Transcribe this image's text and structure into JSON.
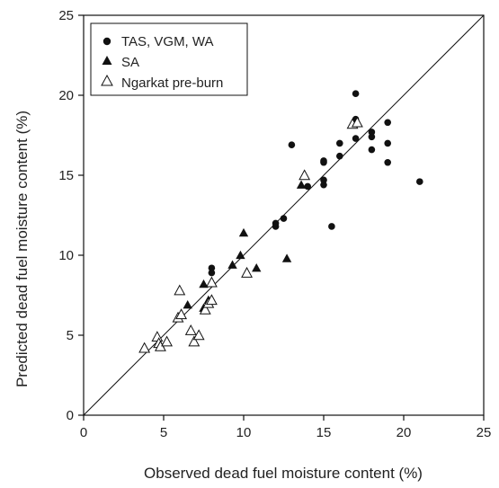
{
  "chart_data": {
    "type": "scatter",
    "title": "",
    "xlabel": "Observed dead fuel moisture content (%)",
    "ylabel": "Predicted dead fuel moisture content (%)",
    "xlim": [
      0,
      25
    ],
    "ylim": [
      0,
      25
    ],
    "x_ticks": [
      0,
      5,
      10,
      15,
      20,
      25
    ],
    "y_ticks": [
      0,
      5,
      10,
      15,
      20,
      25
    ],
    "grid": false,
    "legend_position": "top-left",
    "reference_line": "1:1",
    "series": [
      {
        "name": "TAS, VGM, WA",
        "marker": "filled-circle",
        "color": "#111111",
        "points": [
          [
            8.0,
            8.9
          ],
          [
            8.0,
            9.2
          ],
          [
            12.0,
            11.8
          ],
          [
            12.0,
            12.0
          ],
          [
            12.5,
            12.3
          ],
          [
            13.0,
            16.9
          ],
          [
            14.0,
            14.3
          ],
          [
            15.0,
            14.4
          ],
          [
            15.0,
            14.7
          ],
          [
            15.0,
            15.8
          ],
          [
            15.0,
            15.9
          ],
          [
            15.5,
            11.8
          ],
          [
            16.0,
            16.2
          ],
          [
            16.0,
            17.0
          ],
          [
            17.0,
            17.3
          ],
          [
            17.0,
            18.5
          ],
          [
            17.0,
            20.1
          ],
          [
            18.0,
            17.4
          ],
          [
            18.0,
            17.7
          ],
          [
            18.0,
            16.6
          ],
          [
            19.0,
            18.3
          ],
          [
            19.0,
            17.0
          ],
          [
            19.0,
            15.8
          ],
          [
            21.0,
            14.6
          ]
        ]
      },
      {
        "name": "SA",
        "marker": "filled-triangle",
        "color": "#111111",
        "points": [
          [
            6.5,
            6.9
          ],
          [
            7.5,
            6.7
          ],
          [
            7.5,
            8.2
          ],
          [
            7.8,
            7.2
          ],
          [
            9.3,
            9.4
          ],
          [
            9.8,
            10.0
          ],
          [
            10.0,
            11.4
          ],
          [
            10.8,
            9.2
          ],
          [
            12.7,
            9.8
          ],
          [
            13.6,
            14.4
          ]
        ]
      },
      {
        "name": "Ngarkat pre-burn",
        "marker": "open-triangle",
        "color": "#111111",
        "points": [
          [
            3.8,
            4.2
          ],
          [
            4.6,
            4.9
          ],
          [
            4.7,
            4.5
          ],
          [
            4.8,
            4.3
          ],
          [
            5.2,
            4.6
          ],
          [
            5.9,
            6.1
          ],
          [
            6.1,
            6.3
          ],
          [
            6.0,
            7.8
          ],
          [
            6.7,
            5.3
          ],
          [
            6.9,
            4.6
          ],
          [
            7.2,
            5.0
          ],
          [
            7.6,
            6.6
          ],
          [
            7.8,
            7.0
          ],
          [
            8.0,
            7.2
          ],
          [
            8.0,
            8.3
          ],
          [
            10.2,
            8.9
          ],
          [
            13.8,
            15.0
          ],
          [
            16.8,
            18.2
          ],
          [
            17.1,
            18.3
          ]
        ]
      }
    ]
  }
}
